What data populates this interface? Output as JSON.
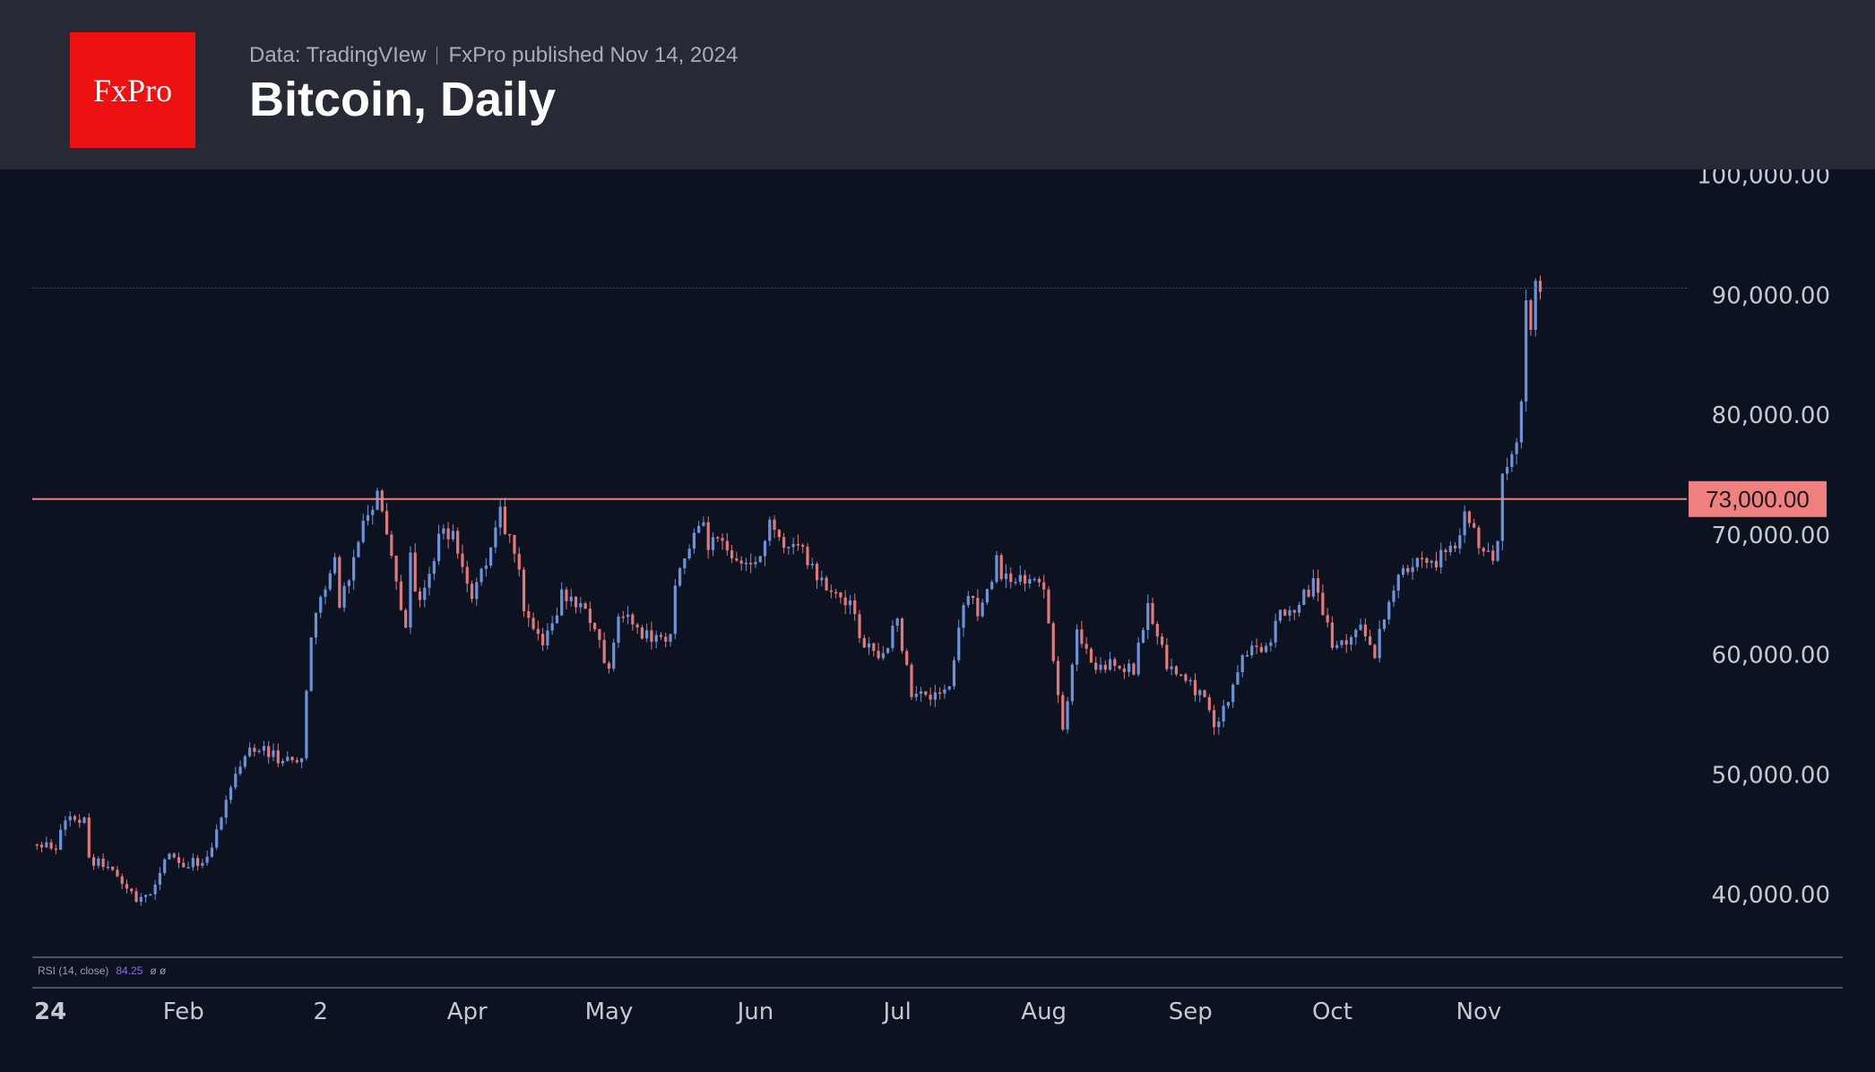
{
  "header": {
    "logo_text": "FxPro",
    "source_text": "Data: TradingVIew",
    "published_text": "FxPro published Nov 14, 2024",
    "title": "Bitcoin, Daily"
  },
  "rsi_label": {
    "name": "RSI (14, close)",
    "value": "84.25",
    "extra": "ø  ø"
  },
  "colors": {
    "up": "#6b93d9",
    "down": "#e27878",
    "level": "#f08080",
    "axis_text": "#c4c8d0",
    "background": "#0c1220",
    "header_bg": "#272a35",
    "logo_bg": "#ee1111",
    "rsi_value": "#8e6fd6"
  },
  "chart_data": {
    "type": "candlestick",
    "title": "Bitcoin, Daily",
    "interval": "1D",
    "y_ticks": [
      "100,000.00",
      "90,000.00",
      "80,000.00",
      "70,000.00",
      "60,000.00",
      "50,000.00",
      "40,000.00"
    ],
    "y_tick_values": [
      100000,
      90000,
      80000,
      70000,
      60000,
      50000,
      40000
    ],
    "x_tick_labels": [
      "24",
      "Feb",
      "2",
      "Apr",
      "May",
      "Jun",
      "Jul",
      "Aug",
      "Sep",
      "Oct",
      "Nov"
    ],
    "x_tick_dates": [
      "2024-01-01",
      "2024-02-01",
      "2024-03-01",
      "2024-04-01",
      "2024-05-01",
      "2024-06-01",
      "2024-07-01",
      "2024-08-01",
      "2024-09-01",
      "2024-10-01",
      "2024-11-01"
    ],
    "x_range": [
      "2023-12-31",
      "2024-12-15"
    ],
    "ylim": [
      35000,
      100500
    ],
    "horizontal_level": {
      "value": 73000,
      "label": "73,000.00"
    },
    "last_price_line": 90600,
    "close_series": [
      [
        "2024-01-01",
        44200
      ],
      [
        "2024-01-05",
        44000
      ],
      [
        "2024-01-08",
        47000
      ],
      [
        "2024-01-11",
        46200
      ],
      [
        "2024-01-12",
        42800
      ],
      [
        "2024-01-15",
        42500
      ],
      [
        "2024-01-18",
        41200
      ],
      [
        "2024-01-22",
        39500
      ],
      [
        "2024-01-25",
        40000
      ],
      [
        "2024-01-29",
        43300
      ],
      [
        "2024-02-01",
        42600
      ],
      [
        "2024-02-05",
        42600
      ],
      [
        "2024-02-08",
        45300
      ],
      [
        "2024-02-12",
        49900
      ],
      [
        "2024-02-15",
        52000
      ],
      [
        "2024-02-19",
        51800
      ],
      [
        "2024-02-22",
        51300
      ],
      [
        "2024-02-26",
        51700
      ],
      [
        "2024-02-28",
        62000
      ],
      [
        "2024-03-04",
        68300
      ],
      [
        "2024-03-05",
        63800
      ],
      [
        "2024-03-08",
        68300
      ],
      [
        "2024-03-11",
        72100
      ],
      [
        "2024-03-13",
        73100
      ],
      [
        "2024-03-15",
        69500
      ],
      [
        "2024-03-19",
        62000
      ],
      [
        "2024-03-20",
        67900
      ],
      [
        "2024-03-22",
        64000
      ],
      [
        "2024-03-26",
        70000
      ],
      [
        "2024-03-29",
        69800
      ],
      [
        "2024-04-02",
        65300
      ],
      [
        "2024-04-05",
        67900
      ],
      [
        "2024-04-08",
        71600
      ],
      [
        "2024-04-12",
        67000
      ],
      [
        "2024-04-13",
        64000
      ],
      [
        "2024-04-17",
        61300
      ],
      [
        "2024-04-21",
        64900
      ],
      [
        "2024-04-24",
        64300
      ],
      [
        "2024-04-27",
        63200
      ],
      [
        "2024-05-01",
        58300
      ],
      [
        "2024-05-03",
        62900
      ],
      [
        "2024-05-06",
        63200
      ],
      [
        "2024-05-10",
        60800
      ],
      [
        "2024-05-14",
        61600
      ],
      [
        "2024-05-15",
        66200
      ],
      [
        "2024-05-20",
        71400
      ],
      [
        "2024-05-22",
        69200
      ],
      [
        "2024-05-25",
        69300
      ],
      [
        "2024-05-28",
        68300
      ],
      [
        "2024-06-01",
        67800
      ],
      [
        "2024-06-04",
        70600
      ],
      [
        "2024-06-07",
        69300
      ],
      [
        "2024-06-10",
        69500
      ],
      [
        "2024-06-14",
        66000
      ],
      [
        "2024-06-18",
        65100
      ],
      [
        "2024-06-21",
        64100
      ],
      [
        "2024-06-24",
        60300
      ],
      [
        "2024-06-28",
        60300
      ],
      [
        "2024-07-01",
        62700
      ],
      [
        "2024-07-04",
        57000
      ],
      [
        "2024-07-05",
        56500
      ],
      [
        "2024-07-08",
        56700
      ],
      [
        "2024-07-12",
        57900
      ],
      [
        "2024-07-15",
        64700
      ],
      [
        "2024-07-18",
        63900
      ],
      [
        "2024-07-22",
        67600
      ],
      [
        "2024-07-25",
        65800
      ],
      [
        "2024-07-29",
        66800
      ],
      [
        "2024-08-01",
        65300
      ],
      [
        "2024-08-05",
        54000
      ],
      [
        "2024-08-08",
        61700
      ],
      [
        "2024-08-12",
        59300
      ],
      [
        "2024-08-16",
        58900
      ],
      [
        "2024-08-20",
        59000
      ],
      [
        "2024-08-23",
        64200
      ],
      [
        "2024-08-27",
        59400
      ],
      [
        "2024-09-01",
        57300
      ],
      [
        "2024-09-04",
        56100
      ],
      [
        "2024-09-06",
        53900
      ],
      [
        "2024-09-10",
        57600
      ],
      [
        "2024-09-13",
        60600
      ],
      [
        "2024-09-17",
        60300
      ],
      [
        "2024-09-20",
        63200
      ],
      [
        "2024-09-24",
        64300
      ],
      [
        "2024-09-27",
        65800
      ],
      [
        "2024-10-01",
        60800
      ],
      [
        "2024-10-03",
        60600
      ],
      [
        "2024-10-07",
        62200
      ],
      [
        "2024-10-10",
        60300
      ],
      [
        "2024-10-14",
        65600
      ],
      [
        "2024-10-17",
        67400
      ],
      [
        "2024-10-21",
        67300
      ],
      [
        "2024-10-24",
        68100
      ],
      [
        "2024-10-28",
        69900
      ],
      [
        "2024-10-29",
        72700
      ],
      [
        "2024-11-01",
        69400
      ],
      [
        "2024-11-04",
        67800
      ],
      [
        "2024-11-05",
        69400
      ],
      [
        "2024-11-06",
        75600
      ],
      [
        "2024-11-08",
        76500
      ],
      [
        "2024-11-10",
        80400
      ],
      [
        "2024-11-11",
        88700
      ],
      [
        "2024-11-12",
        87900
      ],
      [
        "2024-11-13",
        90500
      ],
      [
        "2024-11-14",
        90600
      ]
    ]
  }
}
